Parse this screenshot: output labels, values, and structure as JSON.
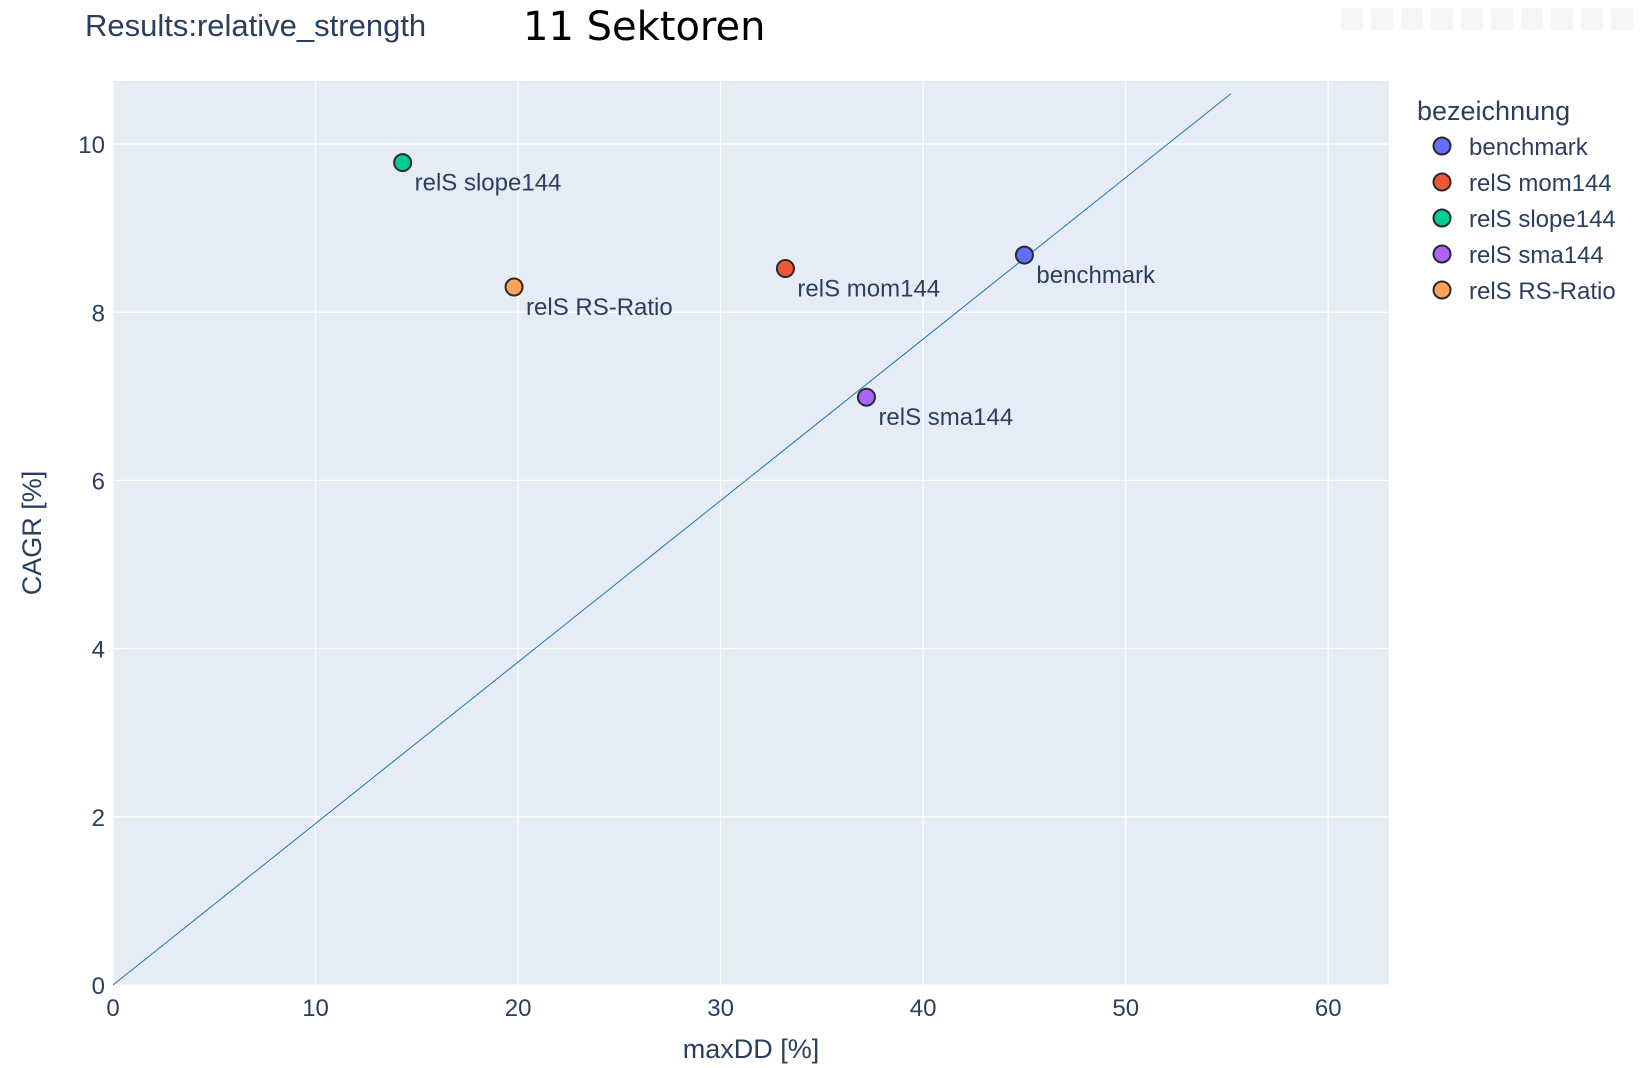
{
  "chart_title": "Results:relative_strength",
  "annotation": "11 Sektoren",
  "chart_data": {
    "type": "scatter",
    "title": "Results:relative_strength",
    "xlabel": "maxDD [%]",
    "ylabel": "CAGR [%]",
    "xlim": [
      0,
      63
    ],
    "ylim": [
      0,
      10.75
    ],
    "xticks": [
      0,
      10,
      20,
      30,
      40,
      50,
      60
    ],
    "yticks": [
      0,
      2,
      4,
      6,
      8,
      10
    ],
    "grid": true,
    "plot_background": "#e5ecf6",
    "legend": {
      "title": "bezeichnung",
      "placement": "right"
    },
    "series": [
      {
        "name": "benchmark",
        "color": "#636efa",
        "x": [
          45.0
        ],
        "y": [
          8.68
        ],
        "text": [
          "benchmark"
        ]
      },
      {
        "name": "relS mom144",
        "color": "#ef553b",
        "x": [
          33.2
        ],
        "y": [
          8.52
        ],
        "text": [
          "relS mom144"
        ]
      },
      {
        "name": "relS slope144",
        "color": "#00cc96",
        "x": [
          14.3
        ],
        "y": [
          9.78
        ],
        "text": [
          "relS slope144"
        ]
      },
      {
        "name": "relS sma144",
        "color": "#ab63fa",
        "x": [
          37.2
        ],
        "y": [
          6.99
        ],
        "text": [
          "relS sma144"
        ]
      },
      {
        "name": "relS RS-Ratio",
        "color": "#ffa15a",
        "x": [
          19.8
        ],
        "y": [
          8.3
        ],
        "text": [
          "relS RS-Ratio"
        ]
      }
    ],
    "reference_line": {
      "x": [
        0,
        55.2
      ],
      "y": [
        0,
        10.6
      ],
      "color": "#1f77b4"
    }
  }
}
